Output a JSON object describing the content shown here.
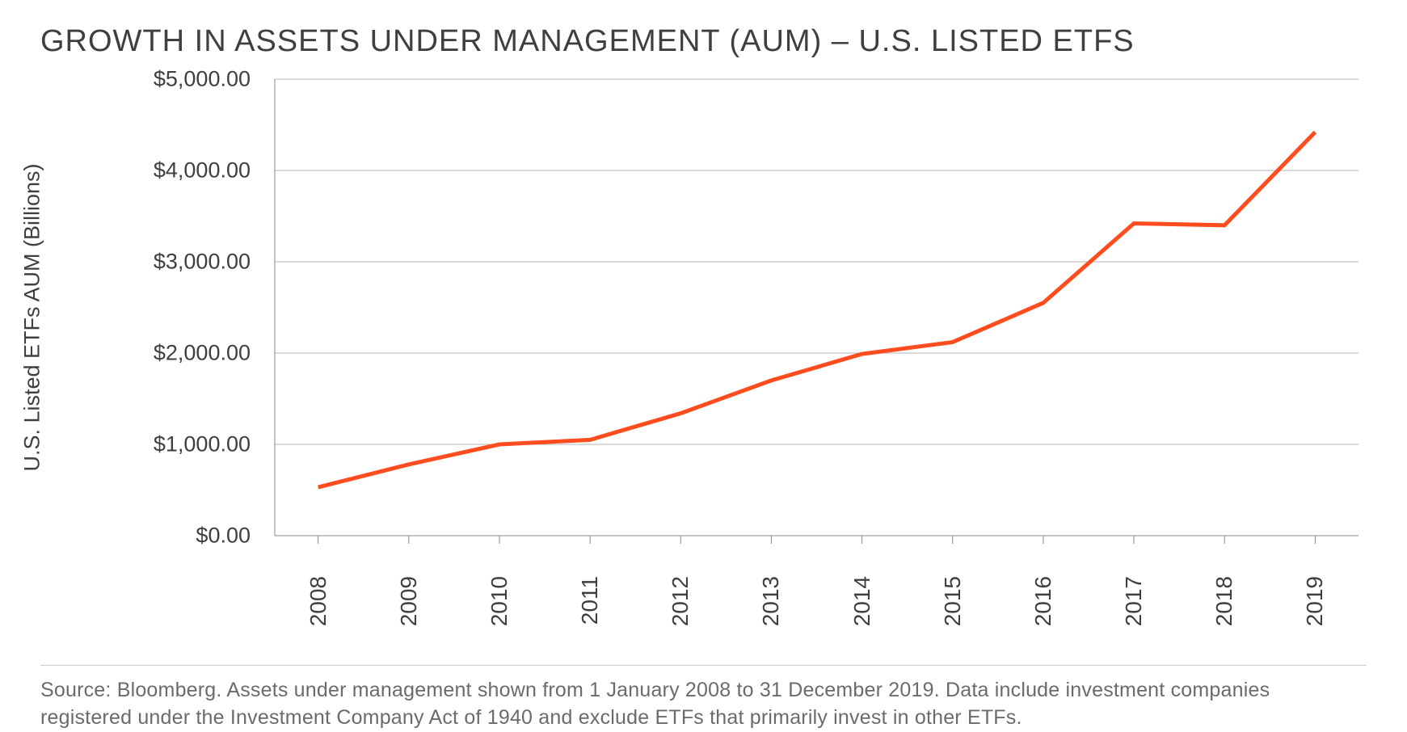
{
  "chart": {
    "type": "line",
    "title": "GROWTH IN ASSETS UNDER MANAGEMENT (AUM) – U.S. LISTED ETFS",
    "title_fontsize": 38,
    "title_color": "#3f3f3f",
    "y_axis_title": "U.S. Listed ETFs AUM (Billions)",
    "y_axis_title_fontsize": 27,
    "background_color": "#ffffff",
    "grid_color": "#b5b5b5",
    "grid_stroke_width": 1,
    "axis_color": "#8a8a8a",
    "axis_stroke_width": 1,
    "tick_mark_length": 10,
    "tick_label_color": "#3f3f3f",
    "tick_label_fontsize": 27,
    "line_color": "#ff4d1f",
    "line_stroke_width": 5,
    "ylim": [
      0,
      5000
    ],
    "ytick_step": 1000,
    "y_ticks": [
      {
        "value": 0,
        "label": "$0.00"
      },
      {
        "value": 1000,
        "label": "$1,000.00"
      },
      {
        "value": 2000,
        "label": "$2,000.00"
      },
      {
        "value": 3000,
        "label": "$3,000.00"
      },
      {
        "value": 4000,
        "label": "$4,000.00"
      },
      {
        "value": 5000,
        "label": "$5,000.00"
      }
    ],
    "x_categories": [
      "2008",
      "2009",
      "2010",
      "2011",
      "2012",
      "2013",
      "2014",
      "2015",
      "2016",
      "2017",
      "2018",
      "2019"
    ],
    "x_tick_rotation_deg": -90,
    "series": [
      {
        "name": "AUM",
        "color": "#ff4d1f",
        "values": [
          530,
          780,
          1000,
          1050,
          1340,
          1700,
          1990,
          2120,
          2550,
          3420,
          3400,
          4420
        ]
      }
    ],
    "footer_rule_color": "#cfcfcf",
    "source_note": "Source: Bloomberg. Assets under management shown from 1 January 2008 to 31 December 2019. Data include investment companies registered under the Investment Company Act of 1940 and exclude ETFs that primarily invest in other ETFs.",
    "source_note_color": "#6b6b6b",
    "source_note_fontsize": 25
  }
}
